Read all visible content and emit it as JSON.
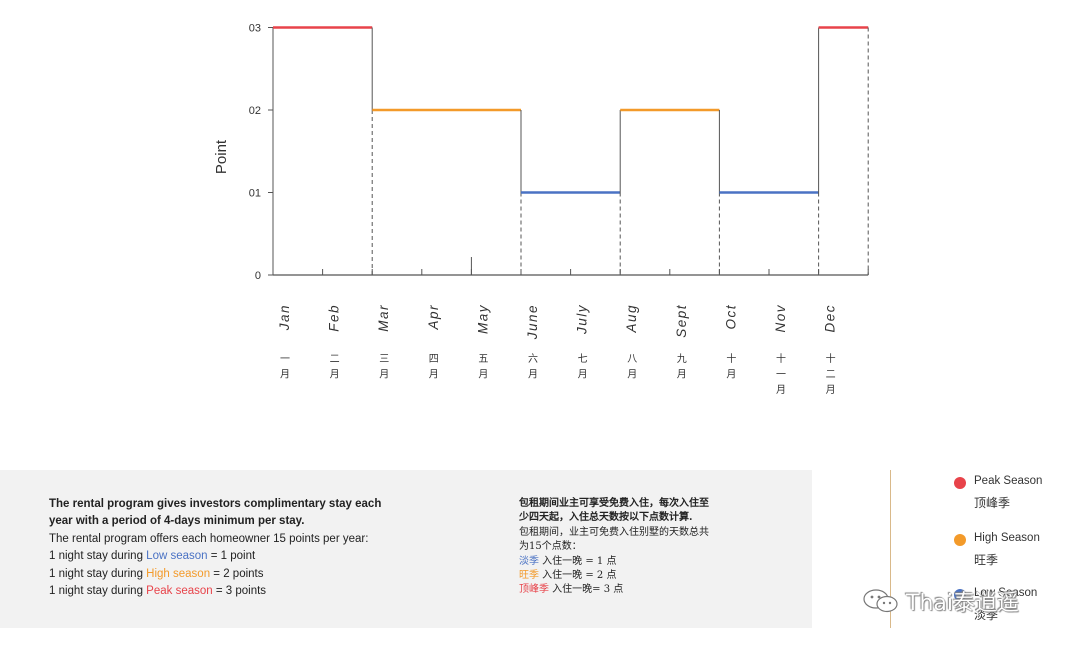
{
  "chart_data": {
    "type": "line",
    "step": true,
    "ylabel": "Point",
    "yticks": [
      "0",
      "01",
      "02",
      "03"
    ],
    "ylim": [
      0,
      3
    ],
    "categories": [
      "Jan",
      "Feb",
      "Mar",
      "Apr",
      "May",
      "June",
      "July",
      "Aug",
      "Sept",
      "Oct",
      "Nov",
      "Dec"
    ],
    "categories_cn": [
      "一月",
      "二月",
      "三月",
      "四月",
      "五月",
      "六月",
      "七月",
      "八月",
      "九月",
      "十月",
      "十一月",
      "十二月"
    ],
    "segments": [
      {
        "season": "peak",
        "from": "Jan",
        "to": "Feb",
        "value": 3
      },
      {
        "season": "high",
        "from": "Mar",
        "to": "May",
        "value": 2
      },
      {
        "season": "low",
        "from": "June",
        "to": "July",
        "value": 1
      },
      {
        "season": "high",
        "from": "Aug",
        "to": "Sept",
        "value": 2
      },
      {
        "season": "low",
        "from": "Oct",
        "to": "Nov",
        "value": 1
      },
      {
        "season": "peak",
        "from": "Dec",
        "to": "Dec",
        "value": 3
      }
    ],
    "colors": {
      "peak": "#e8434a",
      "high": "#f39a2a",
      "low": "#4a72c4",
      "axis": "#555555",
      "dash": "#555555"
    },
    "grid": false
  },
  "info_en": {
    "title_line1": "The rental program gives investors complimentary stay each",
    "title_line2": "year with a period of 4-days minimum per stay.",
    "body": "The rental program offers each homeowner 15 points per year:",
    "low_prefix": "1 night stay during ",
    "low_label": "Low season",
    "low_suffix": " = 1 point",
    "high_prefix": "1 night stay during ",
    "high_label": "High season",
    "high_suffix": " = 2 points",
    "peak_prefix": "1 night stay during ",
    "peak_label": "Peak season",
    "peak_suffix": " = 3 points"
  },
  "info_cn": {
    "title_line1": "包租期间业主可享受免费入住，每次入住至",
    "title_line2": "少四天起，入住总天数按以下点数计算.",
    "body_line1": "包租期间，业主可免费入住别墅的天数总共",
    "body_line2": "为15个点数：",
    "low_label": "淡季",
    "low_suffix": " 入住一晚 = 1 点",
    "high_label": "旺季",
    "high_suffix": " 入住一晚 = 2 点",
    "peak_label": "顶峰季",
    "peak_suffix": " 入住一晚= 3 点"
  },
  "legend": [
    {
      "key": "peak",
      "en": "Peak Season",
      "cn": "顶峰季",
      "color": "#e8434a"
    },
    {
      "key": "high",
      "en": "High Season",
      "cn": "旺季",
      "color": "#f39a2a"
    },
    {
      "key": "low",
      "en": "Low Season",
      "cn": "淡季",
      "color": "#4a72c4"
    }
  ],
  "watermark": "Thai泰逍遥"
}
